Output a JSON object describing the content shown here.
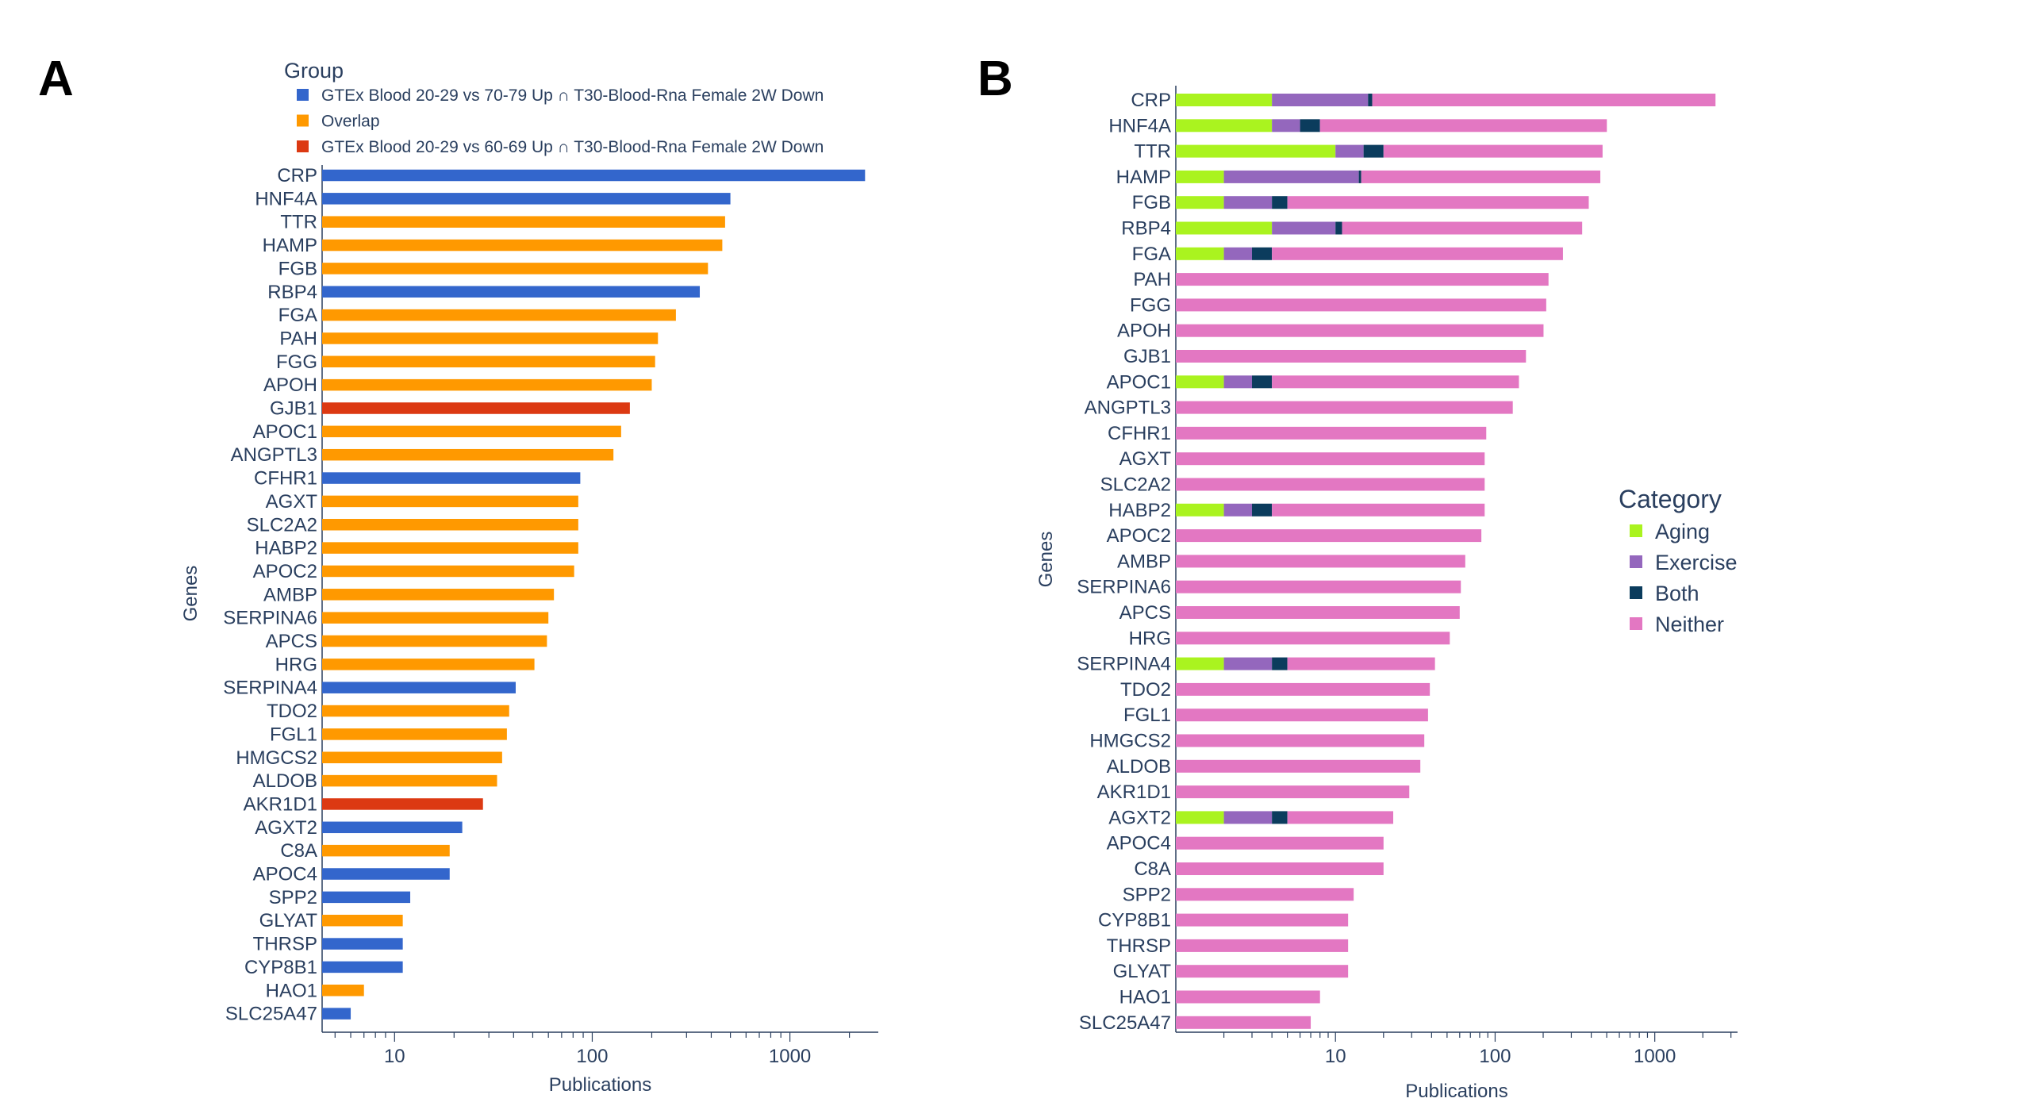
{
  "chart_data": [
    {
      "type": "bar",
      "orientation": "horizontal",
      "panel_label": "A",
      "ylabel": "Genes",
      "xlabel": "Publications",
      "xscale": "log",
      "xlim": [
        4.3,
        2800
      ],
      "xticks": [
        {
          "value": 10,
          "label": "10"
        },
        {
          "value": 100,
          "label": "100"
        },
        {
          "value": 1000,
          "label": "1000"
        }
      ],
      "legend": {
        "title": "Group",
        "placement": "top",
        "entries": [
          {
            "key": "gtex_7079",
            "label": "GTEx Blood 20-29 vs 70-79 Up ∩ T30-Blood-Rna Female 2W Down",
            "color": "#3366cc"
          },
          {
            "key": "overlap",
            "label": "Overlap",
            "color": "#ff9900"
          },
          {
            "key": "gtex_6069",
            "label": "GTEx Blood 20-29 vs 60-69 Up ∩ T30-Blood-Rna Female 2W Down",
            "color": "#dc3912"
          }
        ]
      },
      "genes": [
        {
          "gene": "CRP",
          "value": 2400,
          "group": "gtex_7079"
        },
        {
          "gene": "HNF4A",
          "value": 500,
          "group": "gtex_7079"
        },
        {
          "gene": "TTR",
          "value": 470,
          "group": "overlap"
        },
        {
          "gene": "HAMP",
          "value": 455,
          "group": "overlap"
        },
        {
          "gene": "FGB",
          "value": 385,
          "group": "overlap"
        },
        {
          "gene": "RBP4",
          "value": 350,
          "group": "gtex_7079"
        },
        {
          "gene": "FGA",
          "value": 265,
          "group": "overlap"
        },
        {
          "gene": "PAH",
          "value": 215,
          "group": "overlap"
        },
        {
          "gene": "FGG",
          "value": 208,
          "group": "overlap"
        },
        {
          "gene": "APOH",
          "value": 200,
          "group": "overlap"
        },
        {
          "gene": "GJB1",
          "value": 155,
          "group": "gtex_6069"
        },
        {
          "gene": "APOC1",
          "value": 140,
          "group": "overlap"
        },
        {
          "gene": "ANGPTL3",
          "value": 128,
          "group": "overlap"
        },
        {
          "gene": "CFHR1",
          "value": 87,
          "group": "gtex_7079"
        },
        {
          "gene": "AGXT",
          "value": 85,
          "group": "overlap"
        },
        {
          "gene": "SLC2A2",
          "value": 85,
          "group": "overlap"
        },
        {
          "gene": "HABP2",
          "value": 85,
          "group": "overlap"
        },
        {
          "gene": "APOC2",
          "value": 81,
          "group": "overlap"
        },
        {
          "gene": "AMBP",
          "value": 64,
          "group": "overlap"
        },
        {
          "gene": "SERPINA6",
          "value": 60,
          "group": "overlap"
        },
        {
          "gene": "APCS",
          "value": 59,
          "group": "overlap"
        },
        {
          "gene": "HRG",
          "value": 51,
          "group": "overlap"
        },
        {
          "gene": "SERPINA4",
          "value": 41,
          "group": "gtex_7079"
        },
        {
          "gene": "TDO2",
          "value": 38,
          "group": "overlap"
        },
        {
          "gene": "FGL1",
          "value": 37,
          "group": "overlap"
        },
        {
          "gene": "HMGCS2",
          "value": 35,
          "group": "overlap"
        },
        {
          "gene": "ALDOB",
          "value": 33,
          "group": "overlap"
        },
        {
          "gene": "AKR1D1",
          "value": 28,
          "group": "gtex_6069"
        },
        {
          "gene": "AGXT2",
          "value": 22,
          "group": "gtex_7079"
        },
        {
          "gene": "C8A",
          "value": 19,
          "group": "overlap"
        },
        {
          "gene": "APOC4",
          "value": 19,
          "group": "gtex_7079"
        },
        {
          "gene": "SPP2",
          "value": 12,
          "group": "gtex_7079"
        },
        {
          "gene": "GLYAT",
          "value": 11,
          "group": "overlap"
        },
        {
          "gene": "THRSP",
          "value": 11,
          "group": "gtex_7079"
        },
        {
          "gene": "CYP8B1",
          "value": 11,
          "group": "gtex_7079"
        },
        {
          "gene": "HAO1",
          "value": 7,
          "group": "overlap"
        },
        {
          "gene": "SLC25A47",
          "value": 6,
          "group": "gtex_7079"
        }
      ]
    },
    {
      "type": "bar",
      "orientation": "horizontal",
      "stacked": true,
      "panel_label": "B",
      "ylabel": "Genes",
      "xlabel": "Publications",
      "xscale": "log",
      "xlim": [
        1,
        3300
      ],
      "xticks": [
        {
          "value": 10,
          "label": "10"
        },
        {
          "value": 100,
          "label": "100"
        },
        {
          "value": 1000,
          "label": "1000"
        }
      ],
      "legend": {
        "title": "Category",
        "placement": "right",
        "entries": [
          {
            "key": "aging",
            "label": "Aging",
            "color": "#aaf31f"
          },
          {
            "key": "exercise",
            "label": "Exercise",
            "color": "#9467bd"
          },
          {
            "key": "both",
            "label": "Both",
            "color": "#0b3c5d"
          },
          {
            "key": "neither",
            "label": "Neither",
            "color": "#e377c2"
          }
        ]
      },
      "genes": [
        {
          "gene": "CRP",
          "aging": 3,
          "exercise": 12,
          "both": 1,
          "neither": 2384
        },
        {
          "gene": "HNF4A",
          "aging": 3,
          "exercise": 2,
          "both": 2,
          "neither": 493
        },
        {
          "gene": "TTR",
          "aging": 9,
          "exercise": 5,
          "both": 5,
          "neither": 451
        },
        {
          "gene": "HAMP",
          "aging": 1,
          "exercise": 12,
          "both": 0.5,
          "neither": 441.5
        },
        {
          "gene": "FGB",
          "aging": 1,
          "exercise": 2,
          "both": 1,
          "neither": 381
        },
        {
          "gene": "RBP4",
          "aging": 3,
          "exercise": 6,
          "both": 1,
          "neither": 340
        },
        {
          "gene": "FGA",
          "aging": 1,
          "exercise": 1,
          "both": 1,
          "neither": 262
        },
        {
          "gene": "PAH",
          "neither": 215
        },
        {
          "gene": "FGG",
          "neither": 208
        },
        {
          "gene": "APOH",
          "neither": 200
        },
        {
          "gene": "GJB1",
          "neither": 155
        },
        {
          "gene": "APOC1",
          "aging": 1,
          "exercise": 1,
          "both": 1,
          "neither": 137
        },
        {
          "gene": "ANGPTL3",
          "neither": 128
        },
        {
          "gene": "CFHR1",
          "neither": 87
        },
        {
          "gene": "AGXT",
          "neither": 85
        },
        {
          "gene": "SLC2A2",
          "neither": 85
        },
        {
          "gene": "HABP2",
          "aging": 1,
          "exercise": 1,
          "both": 1,
          "neither": 82
        },
        {
          "gene": "APOC2",
          "neither": 81
        },
        {
          "gene": "AMBP",
          "neither": 64
        },
        {
          "gene": "SERPINA6",
          "neither": 60
        },
        {
          "gene": "APCS",
          "neither": 59
        },
        {
          "gene": "HRG",
          "neither": 51
        },
        {
          "gene": "SERPINA4",
          "aging": 1,
          "exercise": 2,
          "both": 1,
          "neither": 37
        },
        {
          "gene": "TDO2",
          "neither": 38
        },
        {
          "gene": "FGL1",
          "neither": 37
        },
        {
          "gene": "HMGCS2",
          "neither": 35
        },
        {
          "gene": "ALDOB",
          "neither": 33
        },
        {
          "gene": "AKR1D1",
          "neither": 28
        },
        {
          "gene": "AGXT2",
          "aging": 1,
          "exercise": 2,
          "both": 1,
          "neither": 18
        },
        {
          "gene": "APOC4",
          "neither": 19
        },
        {
          "gene": "C8A",
          "neither": 19
        },
        {
          "gene": "SPP2",
          "neither": 12
        },
        {
          "gene": "CYP8B1",
          "neither": 11
        },
        {
          "gene": "THRSP",
          "neither": 11
        },
        {
          "gene": "GLYAT",
          "neither": 11
        },
        {
          "gene": "HAO1",
          "neither": 7
        },
        {
          "gene": "SLC25A47",
          "neither": 6
        }
      ]
    }
  ]
}
